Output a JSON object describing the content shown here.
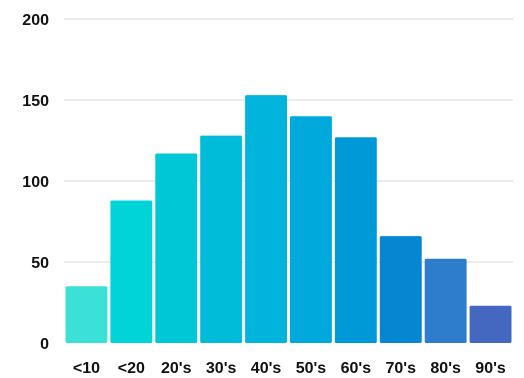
{
  "chart_data": {
    "type": "bar",
    "categories": [
      "<10",
      "<20",
      "20's",
      "30's",
      "40's",
      "50's",
      "60's",
      "70's",
      "80's",
      "90's"
    ],
    "values": [
      35,
      88,
      117,
      128,
      153,
      140,
      127,
      66,
      52,
      23
    ],
    "ylim": [
      0,
      200
    ],
    "yticks": [
      "0",
      "50",
      "100",
      "150",
      "200"
    ],
    "grid": true,
    "legend": "none",
    "colors": [
      "#3be0d6",
      "#00d4d8",
      "#00c7d6",
      "#00bcd8",
      "#00b4dc",
      "#00a9dc",
      "#0099d8",
      "#0686d0",
      "#2e7ccc",
      "#4468c0"
    ]
  }
}
